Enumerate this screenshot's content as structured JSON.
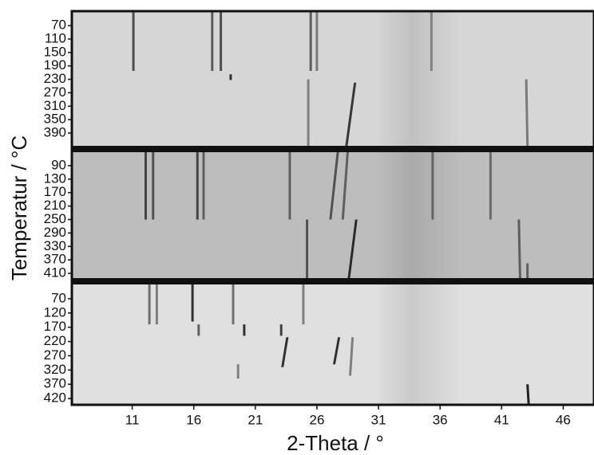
{
  "chart_data": {
    "type": "heatmap",
    "xlabel": "2-Theta / °",
    "ylabel": "Temperatur / °C",
    "xlim": [
      6.1,
      48.5
    ],
    "xticks": [
      11,
      16,
      21,
      26,
      31,
      36,
      41,
      46
    ],
    "panels": [
      {
        "ylim": [
          27,
          428
        ],
        "yticks": [
          70,
          110,
          150,
          190,
          230,
          270,
          310,
          350,
          390
        ],
        "color": "#d6d6d6",
        "reflections": [
          {
            "x": 11.0,
            "x_end": 11.0,
            "from": 27,
            "to": 205,
            "intensity": 0.7
          },
          {
            "x": 17.4,
            "x_end": 17.4,
            "from": 27,
            "to": 205,
            "intensity": 0.6
          },
          {
            "x": 18.1,
            "x_end": 18.1,
            "from": 27,
            "to": 205,
            "intensity": 0.7
          },
          {
            "x": 25.4,
            "x_end": 25.4,
            "from": 27,
            "to": 205,
            "intensity": 0.6
          },
          {
            "x": 25.9,
            "x_end": 25.9,
            "from": 27,
            "to": 205,
            "intensity": 0.4
          },
          {
            "x": 35.2,
            "x_end": 35.2,
            "from": 27,
            "to": 205,
            "intensity": 0.3
          },
          {
            "x": 18.9,
            "x_end": 18.9,
            "from": 215,
            "to": 232,
            "intensity": 0.9
          },
          {
            "x": 25.2,
            "x_end": 25.2,
            "from": 230,
            "to": 428,
            "intensity": 0.35
          },
          {
            "x": 29.0,
            "x_end": 28.3,
            "from": 240,
            "to": 428,
            "intensity": 0.85
          },
          {
            "x": 42.9,
            "x_end": 43.0,
            "from": 230,
            "to": 428,
            "intensity": 0.4
          }
        ]
      },
      {
        "ylim": [
          50,
          424
        ],
        "yticks": [
          90,
          130,
          170,
          210,
          250,
          290,
          330,
          370,
          410
        ],
        "color": "#bdbdbd",
        "reflections": [
          {
            "x": 12.0,
            "x_end": 12.0,
            "from": 50,
            "to": 250,
            "intensity": 0.7
          },
          {
            "x": 12.6,
            "x_end": 12.6,
            "from": 50,
            "to": 250,
            "intensity": 0.6
          },
          {
            "x": 16.2,
            "x_end": 16.2,
            "from": 50,
            "to": 250,
            "intensity": 0.7
          },
          {
            "x": 16.7,
            "x_end": 16.7,
            "from": 50,
            "to": 250,
            "intensity": 0.5
          },
          {
            "x": 23.7,
            "x_end": 23.7,
            "from": 50,
            "to": 250,
            "intensity": 0.5
          },
          {
            "x": 27.6,
            "x_end": 27.0,
            "from": 50,
            "to": 250,
            "intensity": 0.6
          },
          {
            "x": 28.4,
            "x_end": 28.0,
            "from": 50,
            "to": 250,
            "intensity": 0.5
          },
          {
            "x": 35.3,
            "x_end": 35.3,
            "from": 50,
            "to": 250,
            "intensity": 0.4
          },
          {
            "x": 40.0,
            "x_end": 40.0,
            "from": 50,
            "to": 250,
            "intensity": 0.4
          },
          {
            "x": 25.1,
            "x_end": 25.1,
            "from": 250,
            "to": 424,
            "intensity": 0.6
          },
          {
            "x": 29.1,
            "x_end": 28.5,
            "from": 250,
            "to": 424,
            "intensity": 0.9
          },
          {
            "x": 42.3,
            "x_end": 42.4,
            "from": 250,
            "to": 424,
            "intensity": 0.5
          },
          {
            "x": 43.0,
            "x_end": 43.0,
            "from": 380,
            "to": 424,
            "intensity": 0.5
          }
        ]
      },
      {
        "ylim": [
          20,
          442
        ],
        "yticks": [
          70,
          120,
          170,
          220,
          270,
          320,
          370,
          420
        ],
        "color": "#e0e0e0",
        "reflections": [
          {
            "x": 12.3,
            "x_end": 12.3,
            "from": 20,
            "to": 160,
            "intensity": 0.5
          },
          {
            "x": 12.9,
            "x_end": 12.9,
            "from": 20,
            "to": 160,
            "intensity": 0.4
          },
          {
            "x": 15.8,
            "x_end": 15.8,
            "from": 20,
            "to": 150,
            "intensity": 0.9
          },
          {
            "x": 19.1,
            "x_end": 19.1,
            "from": 20,
            "to": 160,
            "intensity": 0.5
          },
          {
            "x": 24.8,
            "x_end": 24.8,
            "from": 20,
            "to": 160,
            "intensity": 0.4
          },
          {
            "x": 16.3,
            "x_end": 16.3,
            "from": 160,
            "to": 200,
            "intensity": 0.6
          },
          {
            "x": 20.0,
            "x_end": 20.0,
            "from": 160,
            "to": 200,
            "intensity": 0.9
          },
          {
            "x": 23.0,
            "x_end": 23.0,
            "from": 160,
            "to": 200,
            "intensity": 0.8
          },
          {
            "x": 23.5,
            "x_end": 23.1,
            "from": 205,
            "to": 310,
            "intensity": 0.9
          },
          {
            "x": 27.7,
            "x_end": 27.3,
            "from": 205,
            "to": 300,
            "intensity": 0.9
          },
          {
            "x": 28.8,
            "x_end": 28.6,
            "from": 205,
            "to": 340,
            "intensity": 0.4
          },
          {
            "x": 19.5,
            "x_end": 19.5,
            "from": 300,
            "to": 350,
            "intensity": 0.4
          },
          {
            "x": 43.0,
            "x_end": 43.1,
            "from": 370,
            "to": 442,
            "intensity": 1.0
          }
        ]
      }
    ]
  }
}
